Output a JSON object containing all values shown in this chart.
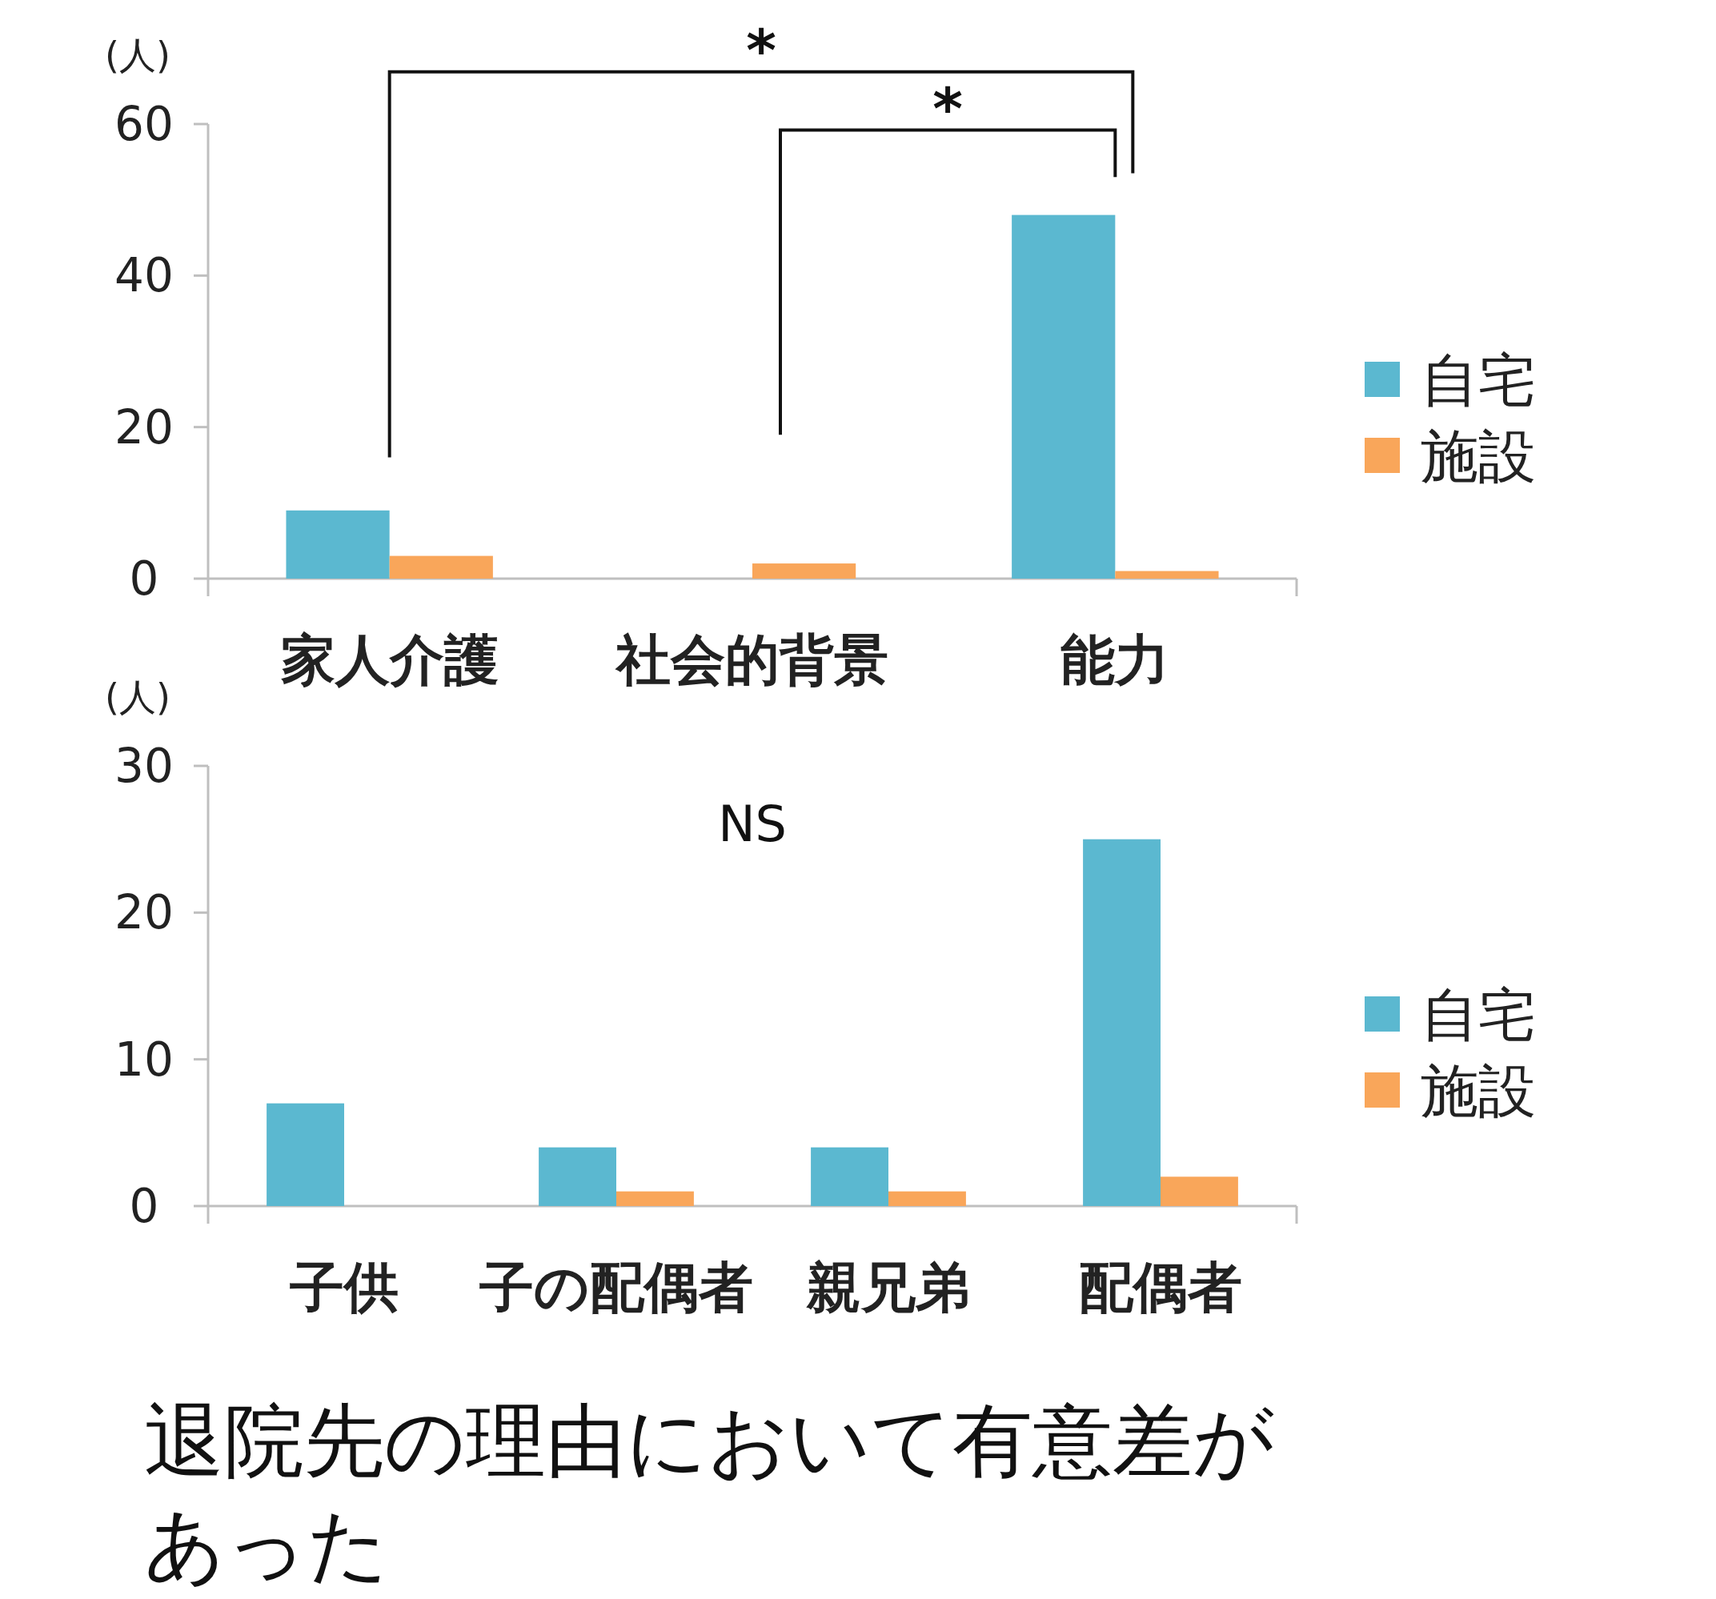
{
  "chart_data": [
    {
      "type": "bar",
      "ylabel": "(人)",
      "categories": [
        "家人介護",
        "社会的背景",
        "能力"
      ],
      "series": [
        {
          "name": "自宅",
          "color": "#5bb8d0",
          "values": [
            9,
            0,
            48
          ]
        },
        {
          "name": "施設",
          "color": "#f9a65a",
          "values": [
            3,
            2,
            1
          ]
        }
      ],
      "ylim": [
        0,
        60
      ],
      "yticks": [
        0,
        20,
        40,
        60
      ],
      "legend": "right",
      "annotations": [
        "*",
        "*"
      ]
    },
    {
      "type": "bar",
      "ylabel": "(人)",
      "categories": [
        "子供",
        "子の配偶者",
        "親兄弟",
        "配偶者"
      ],
      "series": [
        {
          "name": "自宅",
          "color": "#5bb8d0",
          "values": [
            7,
            4,
            4,
            25
          ]
        },
        {
          "name": "施設",
          "color": "#f9a65a",
          "values": [
            0,
            1,
            1,
            2
          ]
        }
      ],
      "ylim": [
        0,
        30
      ],
      "yticks": [
        0,
        10,
        20,
        30
      ],
      "legend": "right",
      "annotations": [
        "NS",
        "退院先の理由において有意差があった"
      ]
    }
  ]
}
